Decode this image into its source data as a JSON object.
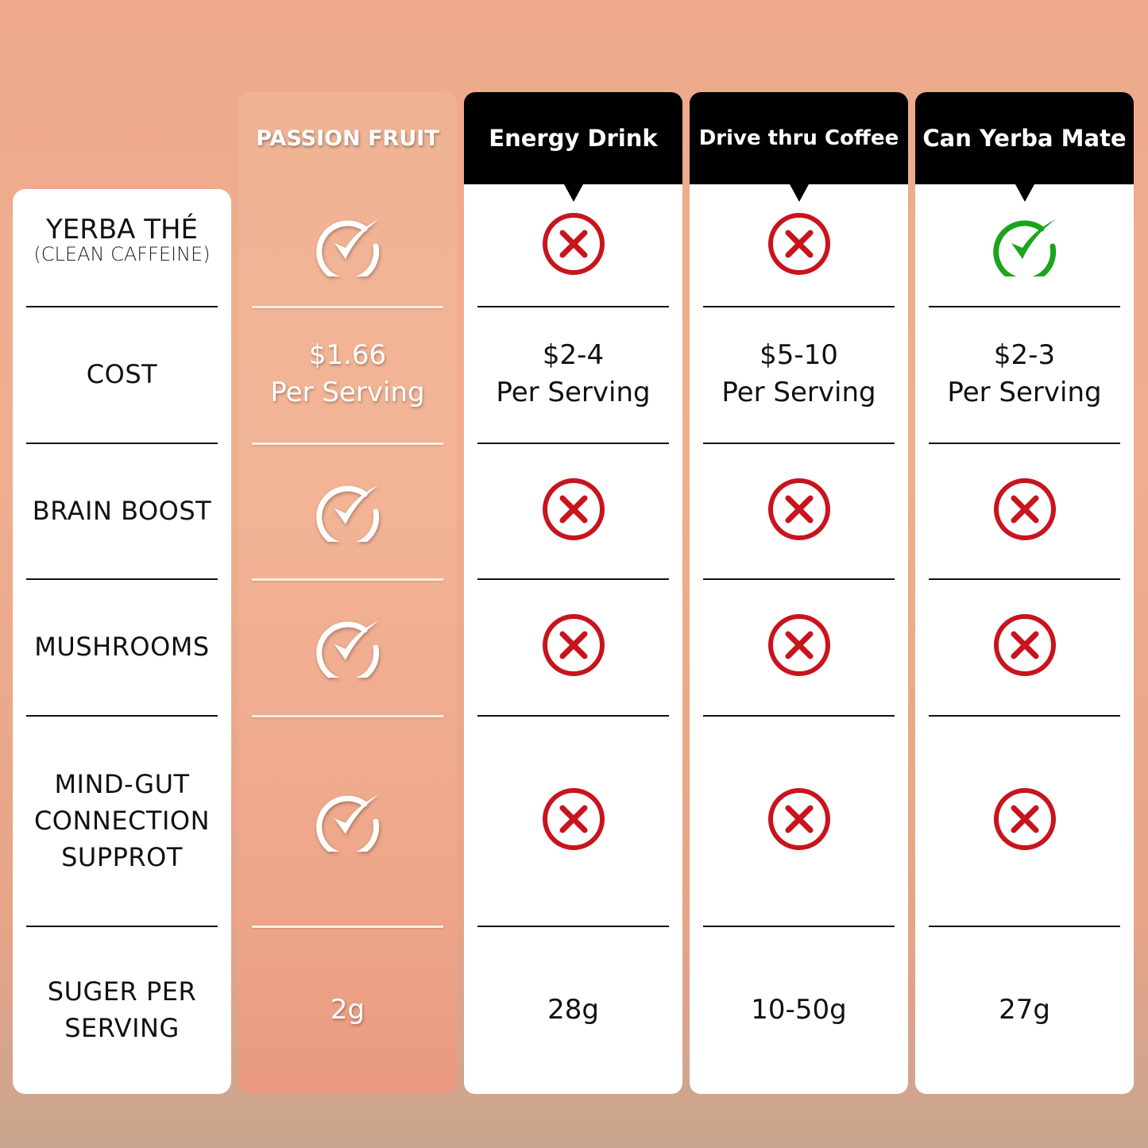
{
  "colors": {
    "cross": "#c8141c",
    "check_green": "#1aa51d",
    "check_white": "#ffffff",
    "header_bg": "#000000"
  },
  "labels": {
    "title": "YERBA THÉ",
    "subtitle": "(CLEAN CAFFEINE)",
    "rows": [
      "COST",
      "BRAIN BOOST",
      "MUSHROOMS",
      "MIND-GUT\nCONNECTION\nSUPPROT",
      "SUGER PER\nSERVING"
    ]
  },
  "columns": [
    {
      "header": "PASSION FRUIT",
      "style": "feature",
      "cells": [
        {
          "icon": "check-circle-icon"
        },
        {
          "text": "$1.66\nPer Serving"
        },
        {
          "icon": "check-circle-icon"
        },
        {
          "icon": "check-circle-icon"
        },
        {
          "icon": "check-circle-icon"
        },
        {
          "text": "2g"
        }
      ]
    },
    {
      "header": "Energy Drink",
      "style": "white",
      "cells": [
        {
          "icon": "cross-circle-icon"
        },
        {
          "text": "$2-4\nPer Serving"
        },
        {
          "icon": "cross-circle-icon"
        },
        {
          "icon": "cross-circle-icon"
        },
        {
          "icon": "cross-circle-icon"
        },
        {
          "text": "28g"
        }
      ]
    },
    {
      "header": "Drive thru Coffee",
      "style": "white",
      "cells": [
        {
          "icon": "cross-circle-icon"
        },
        {
          "text": "$5-10\nPer Serving"
        },
        {
          "icon": "cross-circle-icon"
        },
        {
          "icon": "cross-circle-icon"
        },
        {
          "icon": "cross-circle-icon"
        },
        {
          "text": "10-50g"
        }
      ]
    },
    {
      "header": "Can Yerba Mate",
      "style": "white",
      "cells": [
        {
          "icon": "check-circle-green-icon"
        },
        {
          "text": "$2-3\nPer Serving"
        },
        {
          "icon": "cross-circle-icon"
        },
        {
          "icon": "cross-circle-icon"
        },
        {
          "icon": "cross-circle-icon"
        },
        {
          "text": "27g"
        }
      ]
    }
  ]
}
